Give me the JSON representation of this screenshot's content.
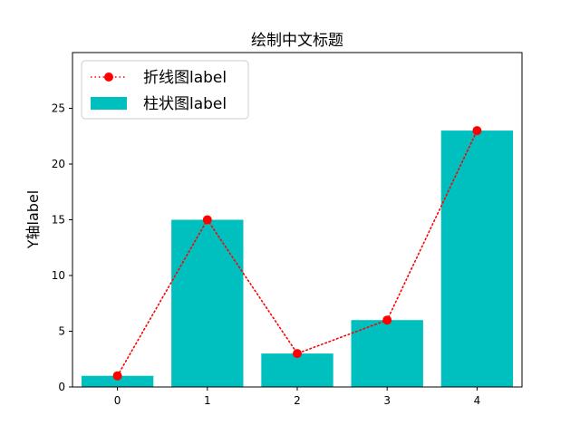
{
  "chart_data": {
    "type": "bar",
    "title": "绘制中文标题",
    "xlabel": "",
    "ylabel": "Y轴label",
    "categories": [
      "0",
      "1",
      "2",
      "3",
      "4"
    ],
    "x": [
      0,
      1,
      2,
      3,
      4
    ],
    "xlim": [
      -0.5,
      4.5
    ],
    "ylim": [
      0,
      30
    ],
    "yticks": [
      0,
      5,
      10,
      15,
      20,
      25
    ],
    "grid": false,
    "legend_position": "top-left",
    "series": [
      {
        "name": "折线图label",
        "type": "line",
        "values": [
          1,
          15,
          3,
          6,
          23
        ],
        "color": "#ff0000",
        "line_style": "dotted",
        "marker": "circle"
      },
      {
        "name": "柱状图label",
        "type": "bar",
        "values": [
          1,
          15,
          3,
          6,
          23
        ],
        "color": "#00bfbf"
      }
    ]
  }
}
